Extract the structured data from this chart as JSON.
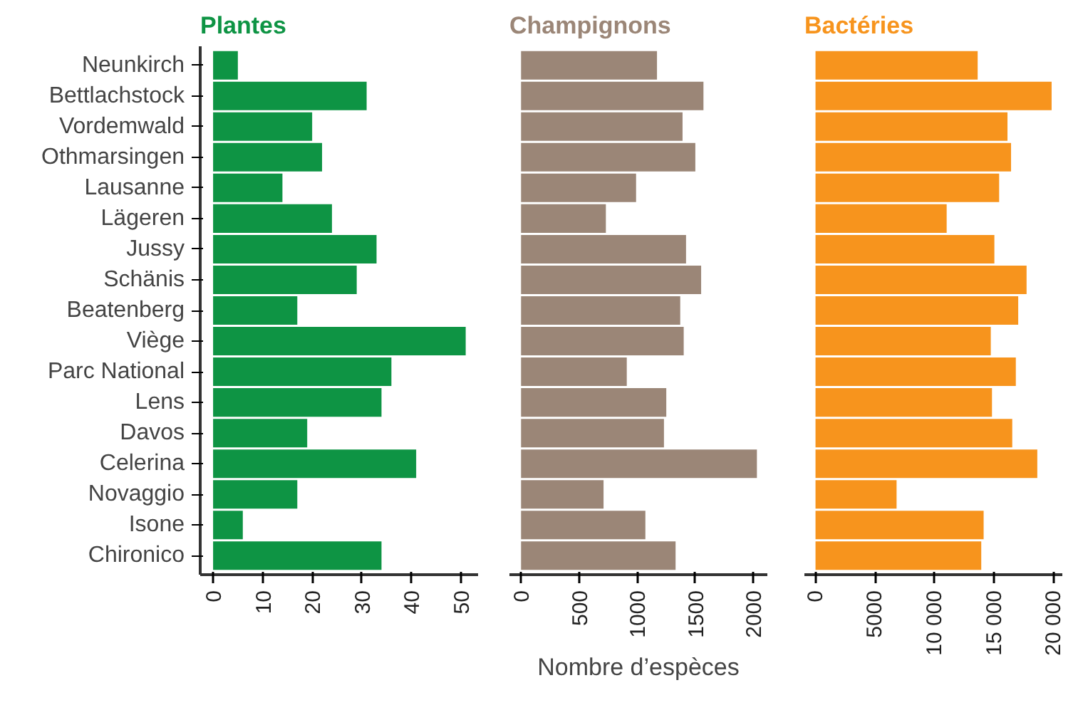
{
  "chart_data": [
    {
      "type": "bar",
      "orientation": "horizontal",
      "title": "Plantes",
      "categories": [
        "Neunkirch",
        "Bettlachstock",
        "Vordemwald",
        "Othmarsingen",
        "Lausanne",
        "Lägeren",
        "Jussy",
        "Schänis",
        "Beatenberg",
        "Viège",
        "Parc National",
        "Lens",
        "Davos",
        "Celerina",
        "Novaggio",
        "Isone",
        "Chironico"
      ],
      "values": [
        5,
        31,
        20,
        22,
        14,
        24,
        33,
        29,
        17,
        51,
        36,
        34,
        19,
        41,
        17,
        6,
        34
      ],
      "color": "#0e9444",
      "xlim": [
        -2.6,
        53.5
      ],
      "xticks": [
        0,
        10,
        20,
        30,
        40,
        50
      ],
      "grid": false
    },
    {
      "type": "bar",
      "orientation": "horizontal",
      "title": "Champignons",
      "xlabel": "Nombre d’espèces",
      "categories": [
        null,
        null,
        null,
        null,
        null,
        null,
        null,
        null,
        null,
        null,
        null,
        null,
        null,
        null,
        null,
        null,
        null
      ],
      "values": [
        1170,
        1570,
        1390,
        1500,
        990,
        730,
        1420,
        1550,
        1370,
        1400,
        910,
        1250,
        1230,
        2030,
        710,
        1070,
        1330
      ],
      "color": "#9b8677",
      "xlim": [
        -100,
        2120
      ],
      "xticks": [
        0,
        500,
        1000,
        1500,
        2000
      ],
      "grid": false,
      "tick_labels": "x"
    },
    {
      "type": "bar",
      "orientation": "horizontal",
      "title": "Bactéries",
      "categories": [
        null,
        null,
        null,
        null,
        null,
        null,
        null,
        null,
        null,
        null,
        null,
        null,
        null,
        null,
        null,
        null,
        null
      ],
      "values": [
        13600,
        19800,
        16100,
        16400,
        15400,
        11000,
        15000,
        17700,
        17000,
        14700,
        16800,
        14800,
        16500,
        18600,
        6800,
        14100,
        13900
      ],
      "color": "#f7941d",
      "xlim": [
        -930,
        20700
      ],
      "xticks": [
        0,
        {
          "value": 5000,
          "label": "5000"
        },
        {
          "value": 10000,
          "label": "10 000"
        },
        {
          "value": 15000,
          "label": "15 000"
        },
        {
          "value": 20000,
          "label": "20 000"
        }
      ],
      "grid": false,
      "tick_labels": "x"
    }
  ]
}
